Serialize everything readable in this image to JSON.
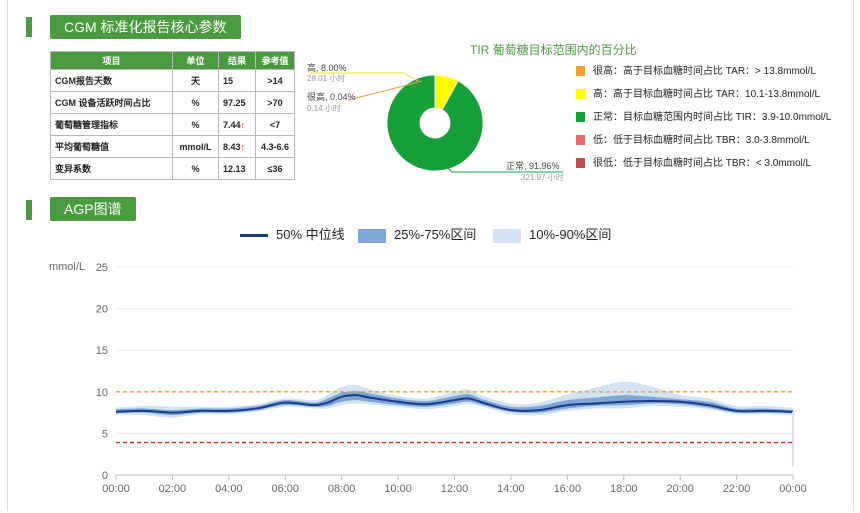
{
  "section1": {
    "title": "CGM 标准化报告核心参数"
  },
  "table": {
    "headers": [
      "项目",
      "单位",
      "结果",
      "参考值"
    ],
    "rows": [
      {
        "item": "CGM报告天数",
        "unit": "天",
        "result": "15",
        "arrow": "",
        "ref": ">14"
      },
      {
        "item": "CGM 设备活跃时间占比",
        "unit": "%",
        "result": "97.25",
        "arrow": "",
        "ref": ">70"
      },
      {
        "item": "葡萄糖管理指标",
        "unit": "%",
        "result": "7.44",
        "arrow": "↑",
        "ref": "<7"
      },
      {
        "item": "平均葡萄糖值",
        "unit": "mmol/L",
        "result": "8.43",
        "arrow": "↑",
        "ref": "4.3-6.6"
      },
      {
        "item": "变异系数",
        "unit": "%",
        "result": "12.13",
        "arrow": "",
        "ref": "≤36"
      }
    ]
  },
  "pie": {
    "title": "TIR 葡萄糖目标范围内的百分比",
    "slices": [
      {
        "name": "很高",
        "label": "很高, 0.04%",
        "percent": 0.04,
        "sub": "0.14 小时",
        "color": "#f0a030"
      },
      {
        "name": "高",
        "label": "高, 8.00%",
        "percent": 8.0,
        "sub": "28.01 小时",
        "color": "#ffff00"
      },
      {
        "name": "正常",
        "label": "正常, 91.96%",
        "percent": 91.96,
        "sub": "321.97 小时",
        "color": "#17a03a"
      }
    ],
    "legend": [
      {
        "text": "很高：高于目标血糖时间占比 TAR：> 13.8mmol/L",
        "color": "#f0a030"
      },
      {
        "text": "高：高于目标血糖时间占比 TAR：10.1-13.8mmol/L",
        "color": "#ffff00"
      },
      {
        "text": "正常：目标血糖范围内时间占比 TIR：3.9-10.0mmol/L",
        "color": "#17a03a"
      },
      {
        "text": "低：低于目标血糖时间占比 TBR：3.0-3.8mmol/L",
        "color": "#e36a6a"
      },
      {
        "text": "很低：低于目标血糖时间占比 TBR：< 3.0mmol/L",
        "color": "#c0504d"
      }
    ]
  },
  "section2": {
    "title": "AGP图谱"
  },
  "chart_data": {
    "type": "area",
    "ylabel": "mmol/L",
    "ylim": [
      0,
      25
    ],
    "yticks": [
      "0",
      "5",
      "10",
      "15",
      "20",
      "25"
    ],
    "xticks": [
      "00:00",
      "02:00",
      "04:00",
      "06:00",
      "08:00",
      "10:00",
      "12:00",
      "14:00",
      "16:00",
      "18:00",
      "20:00",
      "22:00",
      "00:00"
    ],
    "legend": [
      {
        "label": "50% 中位线",
        "color": "#1a3a8a"
      },
      {
        "label": "25%-75%区间",
        "color": "#7ea7d6"
      },
      {
        "label": "10%-90%区间",
        "color": "#d3e2f2"
      }
    ],
    "reference_lines": [
      {
        "y": 10.0,
        "color": "#f0a030"
      },
      {
        "y": 3.9,
        "color": "#d02020"
      }
    ],
    "hours": [
      0,
      1,
      2,
      3,
      4,
      5,
      6,
      7,
      7.5,
      8,
      8.5,
      9,
      10,
      11,
      12,
      12.5,
      13,
      14,
      15,
      16,
      17,
      18,
      19,
      20,
      21,
      22,
      23,
      24
    ],
    "median": [
      7.6,
      7.7,
      7.5,
      7.7,
      7.7,
      8.0,
      8.7,
      8.4,
      8.7,
      9.4,
      9.6,
      9.3,
      8.8,
      8.5,
      9.0,
      9.2,
      8.7,
      7.8,
      7.8,
      8.4,
      8.6,
      8.8,
      8.9,
      8.8,
      8.4,
      7.7,
      7.7,
      7.6
    ],
    "p25": [
      7.4,
      7.5,
      7.2,
      7.5,
      7.5,
      7.8,
      8.4,
      8.2,
      8.3,
      8.8,
      9.0,
      8.8,
      8.4,
      8.2,
      8.6,
      8.8,
      8.4,
      7.6,
      7.5,
      8.0,
      8.3,
      8.4,
      8.6,
      8.5,
      8.1,
      7.5,
      7.5,
      7.4
    ],
    "p75": [
      7.9,
      8.0,
      7.8,
      8.0,
      8.0,
      8.3,
      9.0,
      8.7,
      9.2,
      9.9,
      10.1,
      9.8,
      9.2,
      8.9,
      9.5,
      9.7,
      9.1,
      8.2,
      8.3,
      9.0,
      9.3,
      9.6,
      9.4,
      9.1,
      8.8,
      8.0,
      8.0,
      7.8
    ],
    "p10": [
      7.3,
      7.2,
      6.9,
      7.3,
      7.3,
      7.6,
      8.2,
      8.0,
      8.0,
      8.4,
      8.6,
      8.5,
      8.2,
      7.9,
      8.3,
      8.5,
      8.2,
      7.3,
      7.2,
      7.7,
      8.0,
      8.0,
      8.3,
      8.2,
      7.9,
      7.3,
      7.3,
      7.2
    ],
    "p90": [
      8.1,
      8.3,
      8.2,
      8.2,
      8.2,
      8.5,
      9.2,
      9.0,
      9.6,
      10.6,
      10.8,
      10.3,
      9.5,
      9.2,
      10.0,
      10.3,
      9.5,
      8.6,
      8.7,
      9.7,
      10.5,
      11.2,
      10.6,
      9.6,
      9.2,
      8.3,
      8.3,
      8.1
    ]
  }
}
